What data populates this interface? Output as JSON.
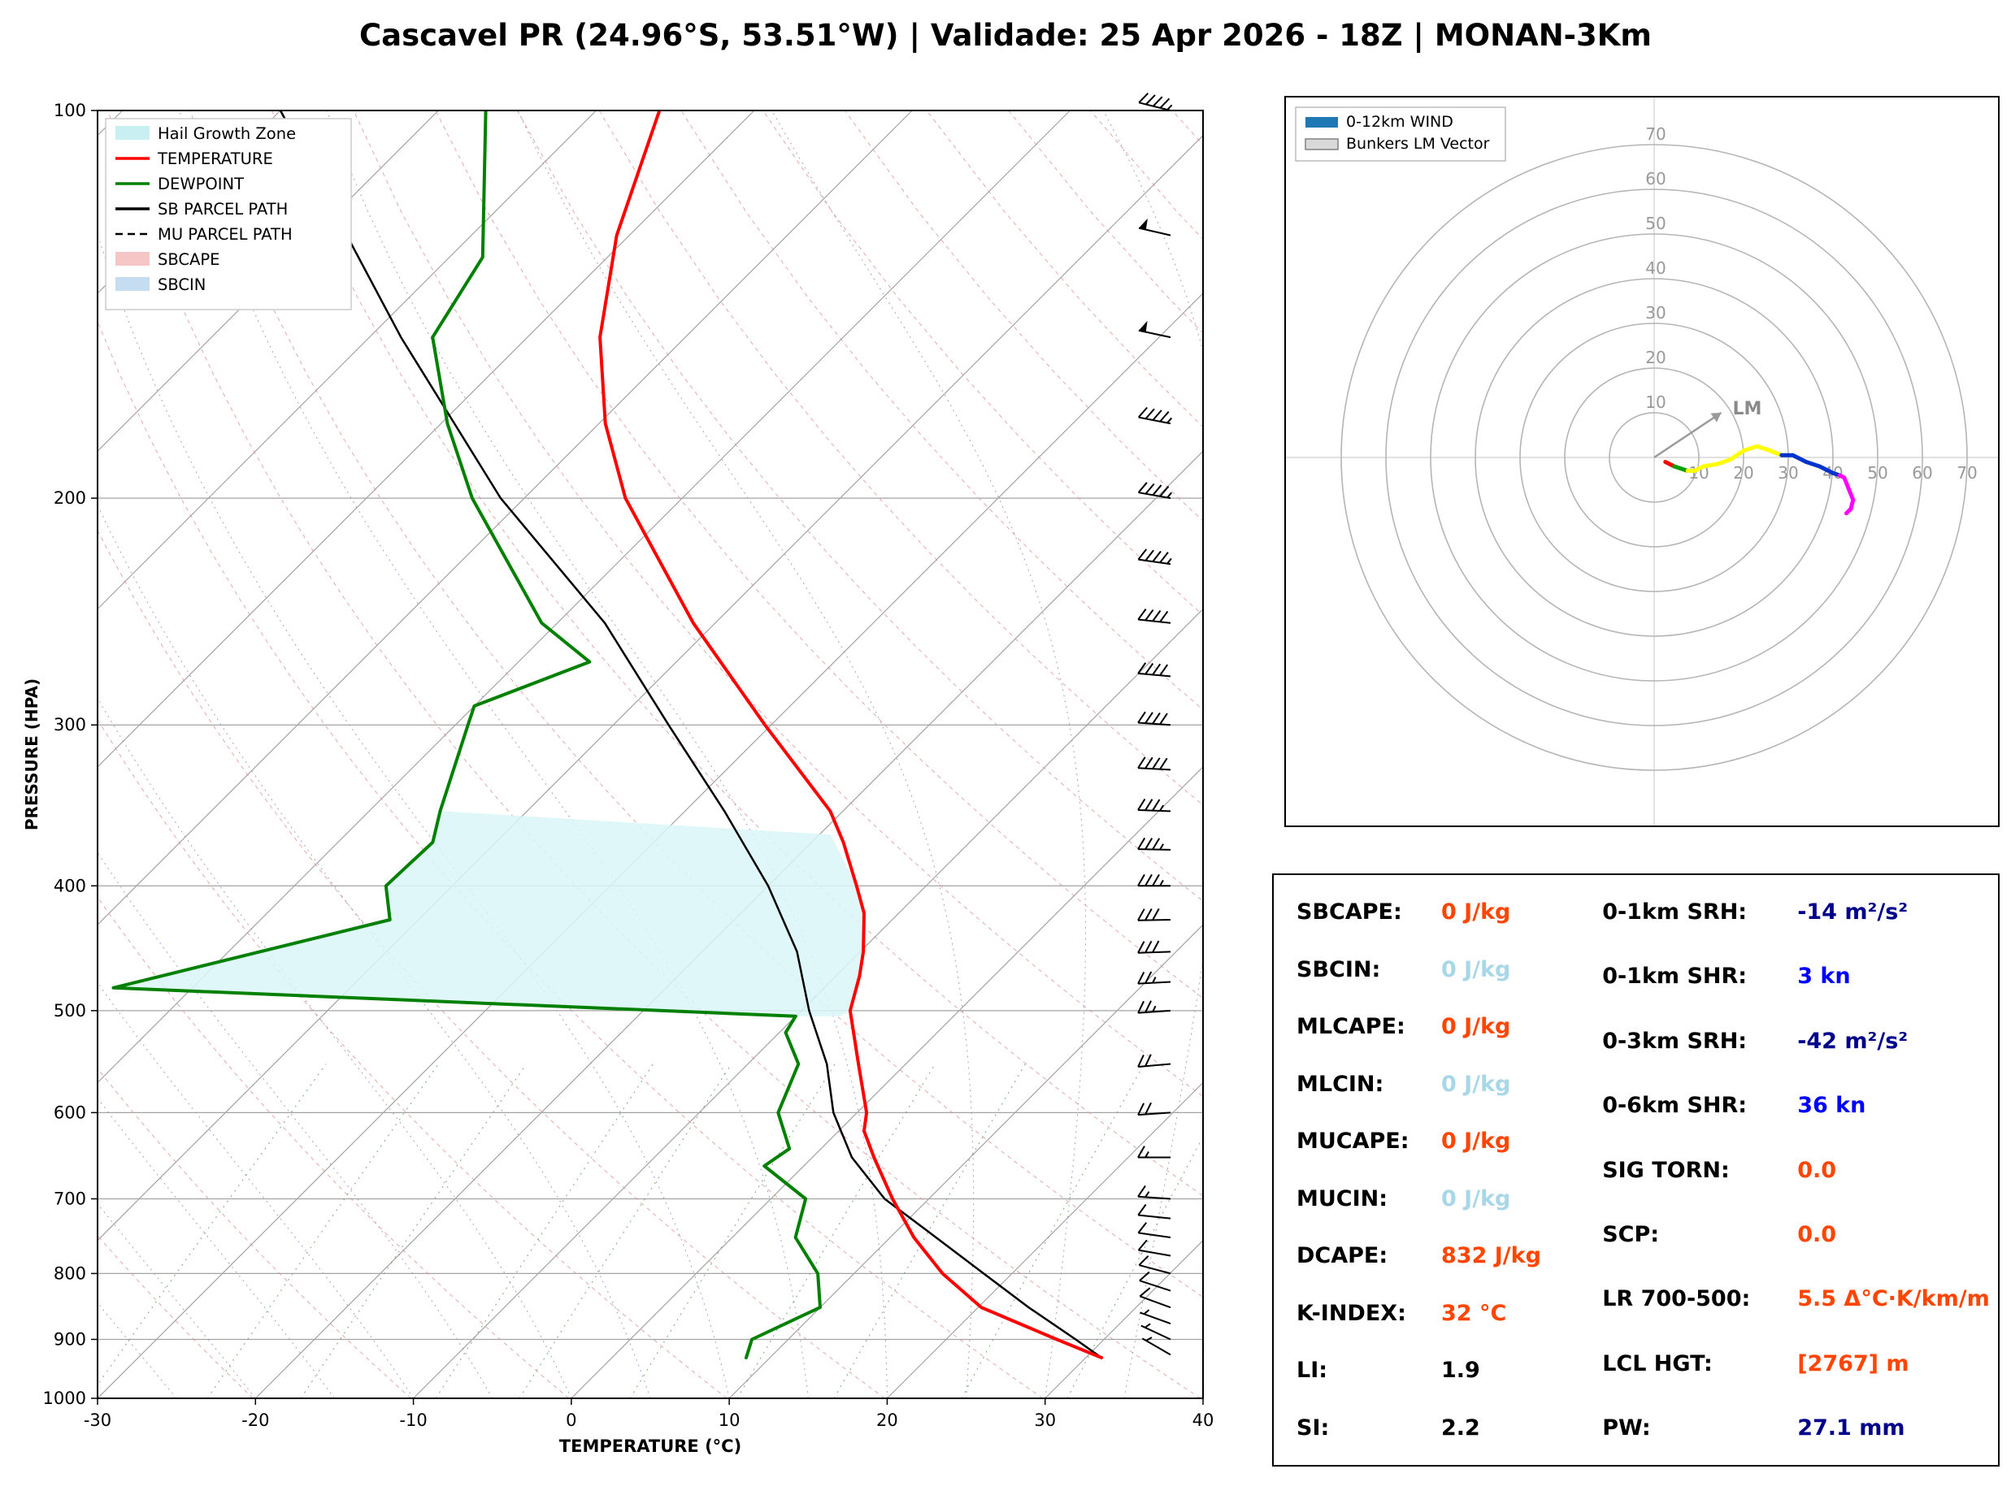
{
  "title": "Cascavel PR (24.96°S, 53.51°W) | Validade: 25 Apr 2026 - 18Z | MONAN-3Km",
  "chart_data": {
    "type": "line",
    "title": "Cascavel PR (24.96°S, 53.51°W) | Validade: 25 Apr 2026 - 18Z | MONAN-3Km",
    "skewt": {
      "xlabel": "TEMPERATURE (°C)",
      "ylabel": "PRESSURE (HPA)",
      "x_ticks": [
        -30,
        -20,
        -10,
        0,
        10,
        20,
        30,
        40
      ],
      "p_ticks": [
        100,
        200,
        300,
        400,
        500,
        600,
        700,
        800,
        900,
        1000
      ],
      "t_range": [
        -30,
        40
      ],
      "p_range": [
        100,
        1000
      ],
      "legend": [
        {
          "label": "Hail Growth Zone",
          "type": "patch",
          "color": "#c9eff2"
        },
        {
          "label": "TEMPERATURE",
          "type": "line",
          "color": "#ff0000"
        },
        {
          "label": "DEWPOINT",
          "type": "line",
          "color": "#008000"
        },
        {
          "label": "SB PARCEL PATH",
          "type": "line",
          "color": "#000000"
        },
        {
          "label": "MU PARCEL PATH",
          "type": "dash",
          "color": "#000000"
        },
        {
          "label": "SBCAPE",
          "type": "patch",
          "color": "#f6c6c6"
        },
        {
          "label": "SBCIN",
          "type": "patch",
          "color": "#c6dcf0"
        }
      ],
      "temperature": {
        "name": "TEMPERATURE",
        "color": "#ff0000",
        "points": [
          [
            930,
            31
          ],
          [
            900,
            27
          ],
          [
            850,
            20.2
          ],
          [
            800,
            15.6
          ],
          [
            750,
            11.5
          ],
          [
            700,
            7.7
          ],
          [
            650,
            3.9
          ],
          [
            620,
            1.6
          ],
          [
            600,
            0.6
          ],
          [
            550,
            -3
          ],
          [
            500,
            -6.9
          ],
          [
            470,
            -8.5
          ],
          [
            450,
            -9.8
          ],
          [
            420,
            -12.2
          ],
          [
            400,
            -14.4
          ],
          [
            370,
            -18
          ],
          [
            350,
            -20.8
          ],
          [
            300,
            -30.4
          ],
          [
            250,
            -41.4
          ],
          [
            200,
            -53.6
          ],
          [
            175,
            -59.6
          ],
          [
            150,
            -65.4
          ],
          [
            125,
            -70.8
          ],
          [
            100,
            -76
          ]
        ]
      },
      "dewpoint": {
        "name": "DEWPOINT",
        "color": "#008000",
        "points": [
          [
            930,
            8.5
          ],
          [
            900,
            7.7
          ],
          [
            850,
            10
          ],
          [
            800,
            7.7
          ],
          [
            750,
            4
          ],
          [
            700,
            2.2
          ],
          [
            660,
            -2.5
          ],
          [
            640,
            -2
          ],
          [
            600,
            -5
          ],
          [
            550,
            -6.8
          ],
          [
            520,
            -9.6
          ],
          [
            505,
            -10
          ],
          [
            480,
            -55
          ],
          [
            425,
            -41.8
          ],
          [
            400,
            -44.2
          ],
          [
            370,
            -44
          ],
          [
            350,
            -45.5
          ],
          [
            300,
            -49.2
          ],
          [
            290,
            -50
          ],
          [
            268,
            -45.5
          ],
          [
            250,
            -51
          ],
          [
            200,
            -63.3
          ],
          [
            175,
            -69.6
          ],
          [
            150,
            -76
          ],
          [
            130,
            -77.9
          ],
          [
            100,
            -87
          ]
        ]
      },
      "parcel_sb": {
        "name": "SB PARCEL PATH",
        "color": "#000000",
        "points": [
          [
            930,
            31
          ],
          [
            900,
            28.2
          ],
          [
            850,
            23.2
          ],
          [
            800,
            18.2
          ],
          [
            750,
            12.9
          ],
          [
            700,
            7.2
          ],
          [
            650,
            2.5
          ],
          [
            600,
            -1.5
          ],
          [
            550,
            -5
          ],
          [
            500,
            -9.5
          ],
          [
            450,
            -14
          ],
          [
            400,
            -20
          ],
          [
            350,
            -27.5
          ],
          [
            300,
            -36.5
          ],
          [
            250,
            -47
          ],
          [
            200,
            -61.5
          ],
          [
            150,
            -78
          ],
          [
            100,
            -100
          ]
        ]
      },
      "parcel_mu": {
        "name": "MU PARCEL PATH",
        "color": "#000000",
        "points": [
          [
            930,
            31
          ],
          [
            900,
            28.2
          ],
          [
            850,
            23.2
          ],
          [
            800,
            18.2
          ],
          [
            750,
            12.9
          ],
          [
            700,
            7.2
          ],
          [
            650,
            2.5
          ],
          [
            600,
            -1.5
          ],
          [
            550,
            -5
          ],
          [
            500,
            -9.5
          ],
          [
            450,
            -14
          ],
          [
            400,
            -20
          ],
          [
            350,
            -27.5
          ],
          [
            300,
            -36.5
          ],
          [
            250,
            -47
          ],
          [
            200,
            -61.5
          ],
          [
            150,
            -78
          ],
          [
            100,
            -100
          ]
        ]
      },
      "hail_zone": {
        "label": "Hail Growth Zone",
        "color": "#d9f6f7",
        "polygon": [
          [
            505,
            -10
          ],
          [
            480,
            -55
          ],
          [
            425,
            -41.8
          ],
          [
            400,
            -44.2
          ],
          [
            370,
            -44
          ],
          [
            350,
            -45.5
          ],
          [
            365,
            -19.3
          ],
          [
            400,
            -14.4
          ],
          [
            420,
            -12.2
          ],
          [
            450,
            -9.8
          ],
          [
            470,
            -8.5
          ],
          [
            500,
            -6.9
          ],
          [
            505,
            -7.2
          ]
        ]
      },
      "winds": [
        {
          "p": 925,
          "spd": 4,
          "dir": 300
        },
        {
          "p": 900,
          "spd": 5,
          "dir": 295
        },
        {
          "p": 875,
          "spd": 6,
          "dir": 290
        },
        {
          "p": 850,
          "spd": 8,
          "dir": 290
        },
        {
          "p": 825,
          "spd": 9,
          "dir": 288
        },
        {
          "p": 800,
          "spd": 10,
          "dir": 285
        },
        {
          "p": 775,
          "spd": 10,
          "dir": 280
        },
        {
          "p": 750,
          "spd": 11,
          "dir": 278
        },
        {
          "p": 725,
          "spd": 12,
          "dir": 276
        },
        {
          "p": 700,
          "spd": 13,
          "dir": 274
        },
        {
          "p": 650,
          "spd": 15,
          "dir": 270
        },
        {
          "p": 600,
          "spd": 18,
          "dir": 266
        },
        {
          "p": 550,
          "spd": 21,
          "dir": 265
        },
        {
          "p": 500,
          "spd": 25,
          "dir": 266
        },
        {
          "p": 475,
          "spd": 27,
          "dir": 267
        },
        {
          "p": 450,
          "spd": 30,
          "dir": 268
        },
        {
          "p": 425,
          "spd": 32,
          "dir": 269
        },
        {
          "p": 400,
          "spd": 33,
          "dir": 270
        },
        {
          "p": 375,
          "spd": 35,
          "dir": 271
        },
        {
          "p": 350,
          "spd": 36,
          "dir": 272
        },
        {
          "p": 325,
          "spd": 38,
          "dir": 273
        },
        {
          "p": 300,
          "spd": 39,
          "dir": 274
        },
        {
          "p": 275,
          "spd": 41,
          "dir": 275
        },
        {
          "p": 250,
          "spd": 42,
          "dir": 276
        },
        {
          "p": 225,
          "spd": 43,
          "dir": 278
        },
        {
          "p": 200,
          "spd": 45,
          "dir": 280
        },
        {
          "p": 175,
          "spd": 46,
          "dir": 281
        },
        {
          "p": 150,
          "spd": 50,
          "dir": 282
        },
        {
          "p": 125,
          "spd": 48,
          "dir": 283
        },
        {
          "p": 100,
          "spd": 45,
          "dir": 284
        }
      ]
    },
    "hodograph": {
      "rings": [
        10,
        20,
        30,
        40,
        50,
        60,
        70
      ],
      "legend": [
        {
          "label": "0-12km WIND",
          "color": "#1f77b4"
        },
        {
          "label": "Bunkers LM Vector",
          "color": "#d9d9d9"
        }
      ],
      "lm": {
        "u": 15,
        "v": 10,
        "label": "LM"
      },
      "trace": [
        {
          "u": 2.5,
          "v": -1,
          "c": "#ff0000"
        },
        {
          "u": 4.5,
          "v": -2,
          "c": "#ff0000"
        },
        {
          "u": 6,
          "v": -2.5,
          "c": "#00a000"
        },
        {
          "u": 7.5,
          "v": -3,
          "c": "#00a000"
        },
        {
          "u": 9,
          "v": -3,
          "c": "#ffff00"
        },
        {
          "u": 11,
          "v": -2,
          "c": "#ffff00"
        },
        {
          "u": 14,
          "v": -1.5,
          "c": "#ffff00"
        },
        {
          "u": 17,
          "v": -0.5,
          "c": "#ffff00"
        },
        {
          "u": 20,
          "v": 1.5,
          "c": "#ffff00"
        },
        {
          "u": 23,
          "v": 2.5,
          "c": "#ffff00"
        },
        {
          "u": 26,
          "v": 1.5,
          "c": "#ffff00"
        },
        {
          "u": 28.5,
          "v": 0.5,
          "c": "#ffff00"
        },
        {
          "u": 31,
          "v": 0.5,
          "c": "#0033cc"
        },
        {
          "u": 34,
          "v": -1,
          "c": "#0033cc"
        },
        {
          "u": 37,
          "v": -2,
          "c": "#0033cc"
        },
        {
          "u": 40,
          "v": -3.5,
          "c": "#0033cc"
        },
        {
          "u": 41.5,
          "v": -4,
          "c": "#0033cc"
        },
        {
          "u": 42.5,
          "v": -4.5,
          "c": "#ff00ff"
        },
        {
          "u": 43.5,
          "v": -7,
          "c": "#ff00ff"
        },
        {
          "u": 44.5,
          "v": -9.5,
          "c": "#ff00ff"
        },
        {
          "u": 44,
          "v": -11.5,
          "c": "#ff00ff"
        },
        {
          "u": 43,
          "v": -12.5,
          "c": "#ff00ff"
        }
      ]
    }
  },
  "indices": {
    "left": [
      {
        "label": "SBCAPE:",
        "value": "0 J/kg",
        "color": "#ff4500"
      },
      {
        "label": "SBCIN:",
        "value": "0 J/kg",
        "color": "#a8d8e8"
      },
      {
        "label": "MLCAPE:",
        "value": "0 J/kg",
        "color": "#ff4500"
      },
      {
        "label": "MLCIN:",
        "value": "0 J/kg",
        "color": "#a8d8e8"
      },
      {
        "label": "MUCAPE:",
        "value": "0 J/kg",
        "color": "#ff4500"
      },
      {
        "label": "MUCIN:",
        "value": "0 J/kg",
        "color": "#a8d8e8"
      },
      {
        "label": "DCAPE:",
        "value": "832 J/kg",
        "color": "#ff4500"
      },
      {
        "label": "K-INDEX:",
        "value": "32 °C",
        "color": "#ff4500"
      },
      {
        "label": "LI:",
        "value": "1.9",
        "color": "#000000"
      },
      {
        "label": "SI:",
        "value": "2.2",
        "color": "#000000"
      }
    ],
    "right": [
      {
        "label": "0-1km SRH:",
        "value": "-14 m²/s²",
        "color": "#00008b"
      },
      {
        "label": "0-1km SHR:",
        "value": "3 kn",
        "color": "#0000ff"
      },
      {
        "label": "0-3km SRH:",
        "value": "-42 m²/s²",
        "color": "#00008b"
      },
      {
        "label": "0-6km SHR:",
        "value": "36 kn",
        "color": "#0000ff"
      },
      {
        "label": "SIG TORN:",
        "value": "0.0",
        "color": "#ff4500"
      },
      {
        "label": "SCP:",
        "value": "0.0",
        "color": "#ff4500"
      },
      {
        "label": "LR 700-500:",
        "value": "5.5 Δ°C·K/km/m",
        "color": "#ff4500"
      },
      {
        "label": "LCL HGT:",
        "value": "[2767] m",
        "color": "#ff4500"
      },
      {
        "label": "PW:",
        "value": "27.1 mm",
        "color": "#00008b"
      }
    ]
  }
}
